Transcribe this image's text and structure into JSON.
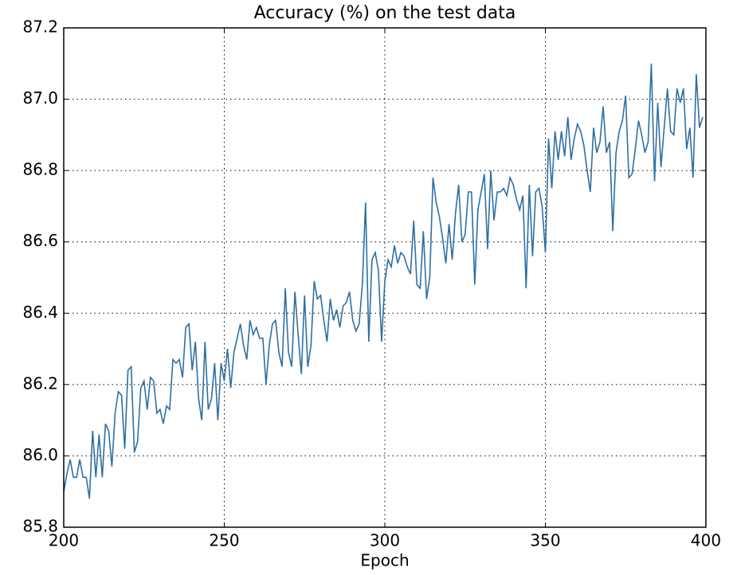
{
  "chart_data": {
    "type": "line",
    "title": "Accuracy (%) on the test data",
    "xlabel": "Epoch",
    "x": [
      200,
      201,
      202,
      203,
      204,
      205,
      206,
      207,
      208,
      209,
      210,
      211,
      212,
      213,
      214,
      215,
      216,
      217,
      218,
      219,
      220,
      221,
      222,
      223,
      224,
      225,
      226,
      227,
      228,
      229,
      230,
      231,
      232,
      233,
      234,
      235,
      236,
      237,
      238,
      239,
      240,
      241,
      242,
      243,
      244,
      245,
      246,
      247,
      248,
      249,
      250,
      251,
      252,
      253,
      254,
      255,
      256,
      257,
      258,
      259,
      260,
      261,
      262,
      263,
      264,
      265,
      266,
      267,
      268,
      269,
      270,
      271,
      272,
      273,
      274,
      275,
      276,
      277,
      278,
      279,
      280,
      281,
      282,
      283,
      284,
      285,
      286,
      287,
      288,
      289,
      290,
      291,
      292,
      293,
      294,
      295,
      296,
      297,
      298,
      299,
      300,
      301,
      302,
      303,
      304,
      305,
      306,
      307,
      308,
      309,
      310,
      311,
      312,
      313,
      314,
      315,
      316,
      317,
      318,
      319,
      320,
      321,
      322,
      323,
      324,
      325,
      326,
      327,
      328,
      329,
      330,
      331,
      332,
      333,
      334,
      335,
      336,
      337,
      338,
      339,
      340,
      341,
      342,
      343,
      344,
      345,
      346,
      347,
      348,
      349,
      350,
      351,
      352,
      353,
      354,
      355,
      356,
      357,
      358,
      359,
      360,
      361,
      362,
      363,
      364,
      365,
      366,
      367,
      368,
      369,
      370,
      371,
      372,
      373,
      374,
      375,
      376,
      377,
      378,
      379,
      380,
      381,
      382,
      383,
      384,
      385,
      386,
      387,
      388,
      389,
      390,
      391,
      392,
      393,
      394,
      395,
      396,
      397,
      398,
      399
    ],
    "series": [
      {
        "color": "#2f6fa3",
        "values": [
          85.9,
          85.95,
          85.99,
          85.94,
          85.94,
          85.99,
          85.94,
          85.94,
          85.88,
          86.07,
          85.94,
          86.06,
          85.94,
          86.09,
          86.07,
          85.97,
          86.12,
          86.18,
          86.17,
          86.02,
          86.24,
          86.25,
          86.01,
          86.04,
          86.19,
          86.21,
          86.13,
          86.22,
          86.21,
          86.12,
          86.13,
          86.09,
          86.14,
          86.13,
          86.27,
          86.26,
          86.27,
          86.22,
          86.36,
          86.37,
          86.24,
          86.32,
          86.16,
          86.1,
          86.32,
          86.13,
          86.16,
          86.26,
          86.1,
          86.26,
          86.21,
          86.3,
          86.19,
          86.29,
          86.33,
          86.37,
          86.31,
          86.27,
          86.38,
          86.34,
          86.36,
          86.33,
          86.33,
          86.2,
          86.31,
          86.37,
          86.38,
          86.29,
          86.25,
          86.47,
          86.29,
          86.25,
          86.46,
          86.34,
          86.23,
          86.45,
          86.25,
          86.31,
          86.49,
          86.44,
          86.45,
          86.38,
          86.32,
          86.44,
          86.38,
          86.41,
          86.36,
          86.42,
          86.43,
          86.46,
          86.38,
          86.35,
          86.37,
          86.48,
          86.71,
          86.32,
          86.55,
          86.57,
          86.52,
          86.32,
          86.49,
          86.55,
          86.53,
          86.59,
          86.54,
          86.57,
          86.56,
          86.53,
          86.51,
          86.66,
          86.48,
          86.47,
          86.63,
          86.44,
          86.5,
          86.78,
          86.71,
          86.67,
          86.61,
          86.54,
          86.65,
          86.55,
          86.68,
          86.76,
          86.6,
          86.62,
          86.74,
          86.74,
          86.48,
          86.69,
          86.74,
          86.79,
          86.58,
          86.8,
          86.66,
          86.74,
          86.74,
          86.75,
          86.73,
          86.78,
          86.76,
          86.72,
          86.69,
          86.73,
          86.47,
          86.76,
          86.56,
          86.74,
          86.75,
          86.7,
          86.57,
          86.89,
          86.75,
          86.91,
          86.83,
          86.91,
          86.84,
          86.95,
          86.83,
          86.89,
          86.93,
          86.91,
          86.87,
          86.8,
          86.74,
          86.92,
          86.85,
          86.88,
          86.98,
          86.85,
          86.88,
          86.63,
          86.85,
          86.91,
          86.94,
          87.01,
          86.78,
          86.79,
          86.86,
          86.94,
          86.9,
          86.85,
          86.88,
          87.1,
          86.77,
          86.99,
          86.81,
          86.92,
          87.03,
          86.91,
          86.9,
          87.03,
          86.99,
          87.03,
          86.86,
          86.92,
          86.78,
          87.07,
          86.92,
          86.95
        ]
      }
    ],
    "xlim": [
      200,
      400
    ],
    "xticks": [
      200,
      250,
      300,
      350,
      400
    ],
    "ylim": [
      85.8,
      87.2
    ],
    "yticks": [
      85.8,
      {
        "value": 86,
        "label": "86.0"
      },
      86.2,
      86.4,
      86.6,
      86.8,
      {
        "value": 87,
        "label": "87.0"
      },
      87.2
    ],
    "grid": true
  }
}
